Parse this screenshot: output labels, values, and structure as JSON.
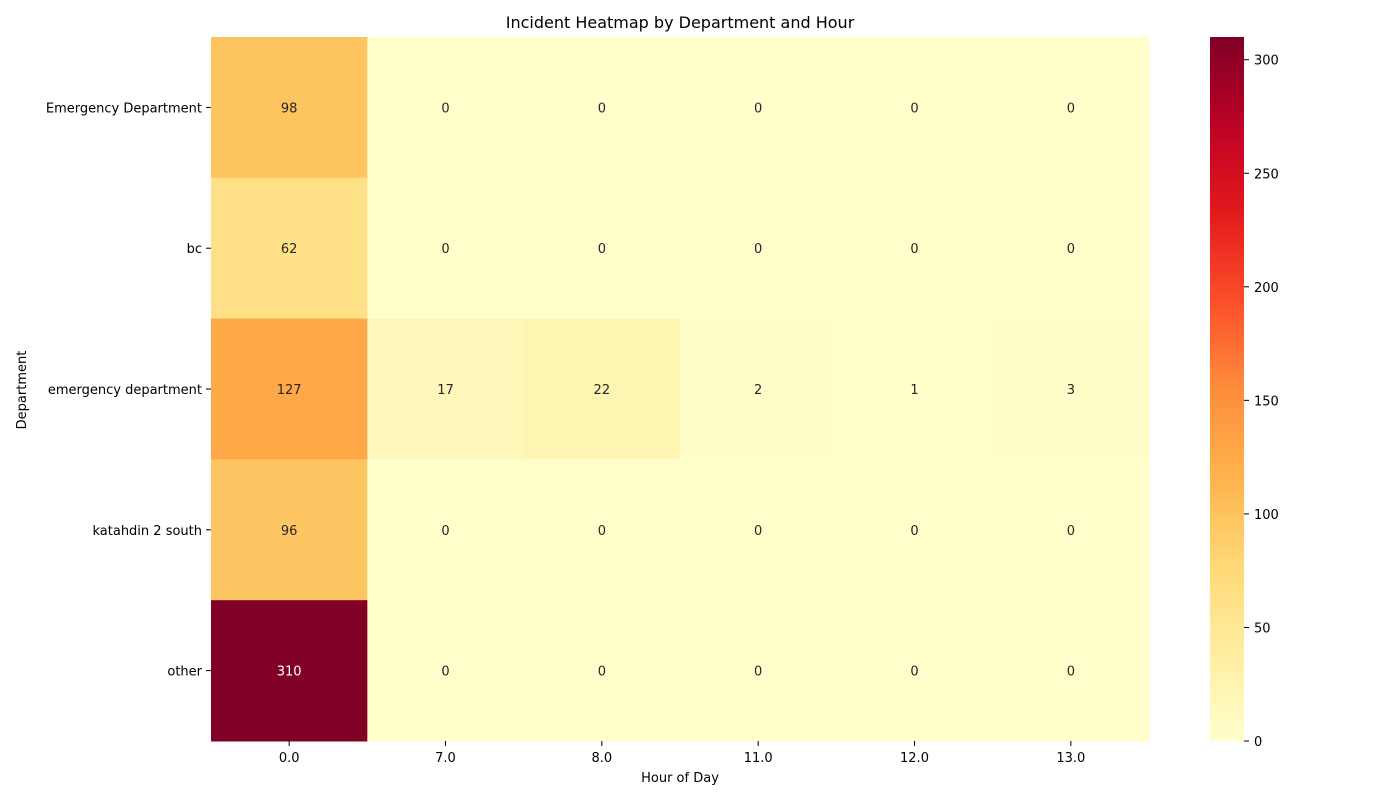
{
  "chart_data": {
    "type": "heatmap",
    "title": "Incident Heatmap by Department and Hour",
    "xlabel": "Hour of Day",
    "ylabel": "Department",
    "x_categories": [
      "0.0",
      "7.0",
      "8.0",
      "11.0",
      "12.0",
      "13.0"
    ],
    "y_categories": [
      "Emergency Department",
      "bc",
      "emergency department",
      "katahdin 2 south",
      "other"
    ],
    "values": [
      [
        98,
        0,
        0,
        0,
        0,
        0
      ],
      [
        62,
        0,
        0,
        0,
        0,
        0
      ],
      [
        127,
        17,
        22,
        2,
        1,
        3
      ],
      [
        96,
        0,
        0,
        0,
        0,
        0
      ],
      [
        310,
        0,
        0,
        0,
        0,
        0
      ]
    ],
    "colorbar": {
      "range": [
        0,
        310
      ],
      "ticks": [
        0,
        50,
        100,
        150,
        200,
        250,
        300
      ],
      "colormap": "YlOrRd"
    },
    "annotations": true,
    "grid": false
  }
}
